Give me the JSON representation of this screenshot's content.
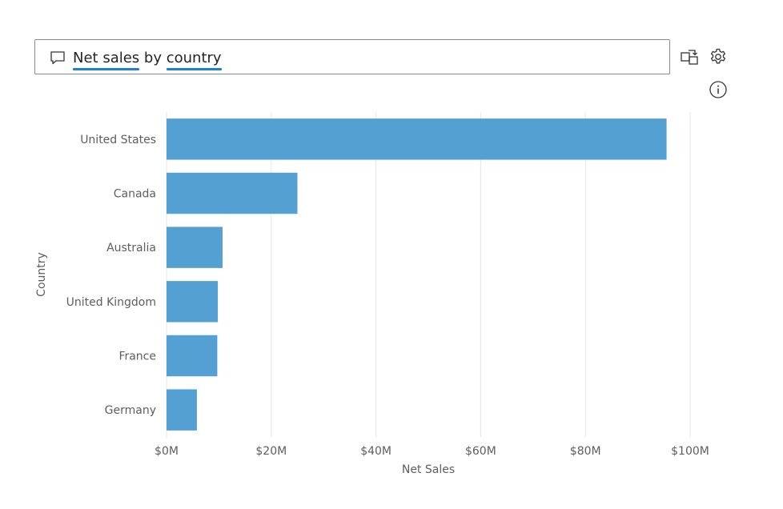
{
  "question": {
    "parts": [
      {
        "text": "Net sales",
        "recognized": true
      },
      {
        "text": " by ",
        "recognized": false
      },
      {
        "text": "country",
        "recognized": true
      }
    ]
  },
  "toolbar": {
    "convert_icon": "convert-visual-icon",
    "settings_icon": "gear-icon",
    "info_icon": "info-icon"
  },
  "colors": {
    "bar": "#55a0d3",
    "gridline": "#e6e6e6",
    "underline": "#1f7fd1"
  },
  "chart_data": {
    "type": "bar",
    "orientation": "horizontal",
    "categories": [
      "United States",
      "Canada",
      "Australia",
      "United Kingdom",
      "France",
      "Germany"
    ],
    "values": [
      95.5,
      25,
      10.7,
      9.8,
      9.7,
      5.8
    ],
    "value_unit": "millions USD",
    "xlabel": "Net Sales",
    "ylabel": "Country",
    "xlim": [
      0,
      100
    ],
    "xticks": [
      0,
      20,
      40,
      60,
      80,
      100
    ],
    "xtick_labels": [
      "$0M",
      "$20M",
      "$40M",
      "$60M",
      "$80M",
      "$100M"
    ],
    "grid": true,
    "legend": "none"
  }
}
